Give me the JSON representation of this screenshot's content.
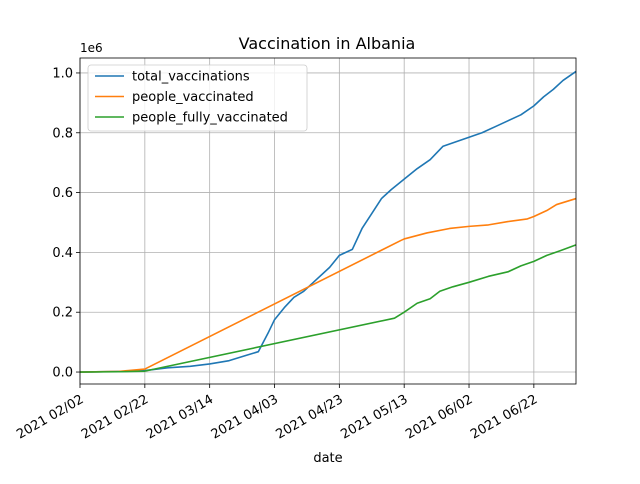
{
  "chart_data": {
    "type": "line",
    "title": "Vaccination in Albania",
    "xlabel": "date",
    "ylabel": "",
    "y_multiplier_label": "1e6",
    "x_ticks": [
      "2021 02/02",
      "2021 02/22",
      "2021 03/14",
      "2021 04/03",
      "2021 04/23",
      "2021 05/13",
      "2021 06/02",
      "2021 06/22"
    ],
    "y_ticks": [
      "0.0",
      "0.2",
      "0.4",
      "0.6",
      "0.8",
      "1.0"
    ],
    "xlim": [
      "2021-02-02",
      "2021-07-05"
    ],
    "ylim": [
      -0.04,
      1.05
    ],
    "y_unit_scale": 1000000,
    "grid": true,
    "legend_position": "top-left",
    "series": [
      {
        "name": "total_vaccinations",
        "color": "#1f77b4",
        "points": [
          [
            "2021-02-02",
            0
          ],
          [
            "2021-02-14",
            0.002
          ],
          [
            "2021-02-22",
            0.005
          ],
          [
            "2021-03-01",
            0.014
          ],
          [
            "2021-03-08",
            0.019
          ],
          [
            "2021-03-14",
            0.027
          ],
          [
            "2021-03-20",
            0.038
          ],
          [
            "2021-03-25",
            0.055
          ],
          [
            "2021-03-29",
            0.068
          ],
          [
            "2021-04-01",
            0.13
          ],
          [
            "2021-04-03",
            0.175
          ],
          [
            "2021-04-06",
            0.215
          ],
          [
            "2021-04-09",
            0.25
          ],
          [
            "2021-04-12",
            0.27
          ],
          [
            "2021-04-16",
            0.31
          ],
          [
            "2021-04-20",
            0.35
          ],
          [
            "2021-04-23",
            0.39
          ],
          [
            "2021-04-27",
            0.41
          ],
          [
            "2021-04-30",
            0.48
          ],
          [
            "2021-05-03",
            0.53
          ],
          [
            "2021-05-06",
            0.58
          ],
          [
            "2021-05-09",
            0.61
          ],
          [
            "2021-05-13",
            0.645
          ],
          [
            "2021-05-17",
            0.68
          ],
          [
            "2021-05-21",
            0.71
          ],
          [
            "2021-05-25",
            0.755
          ],
          [
            "2021-05-29",
            0.77
          ],
          [
            "2021-06-02",
            0.785
          ],
          [
            "2021-06-06",
            0.8
          ],
          [
            "2021-06-10",
            0.82
          ],
          [
            "2021-06-14",
            0.84
          ],
          [
            "2021-06-18",
            0.86
          ],
          [
            "2021-06-22",
            0.89
          ],
          [
            "2021-06-25",
            0.92
          ],
          [
            "2021-06-28",
            0.945
          ],
          [
            "2021-07-01",
            0.975
          ],
          [
            "2021-07-05",
            1.005
          ]
        ]
      },
      {
        "name": "people_vaccinated",
        "color": "#ff7f0e",
        "points": [
          [
            "2021-02-02",
            0
          ],
          [
            "2021-02-14",
            0.002
          ],
          [
            "2021-02-22",
            0.01
          ],
          [
            "2021-05-12",
            0.44
          ],
          [
            "2021-05-13",
            0.445
          ],
          [
            "2021-05-20",
            0.465
          ],
          [
            "2021-05-27",
            0.48
          ],
          [
            "2021-06-02",
            0.487
          ],
          [
            "2021-06-08",
            0.492
          ],
          [
            "2021-06-14",
            0.503
          ],
          [
            "2021-06-20",
            0.512
          ],
          [
            "2021-06-22",
            0.52
          ],
          [
            "2021-06-26",
            0.54
          ],
          [
            "2021-06-29",
            0.56
          ],
          [
            "2021-07-02",
            0.57
          ],
          [
            "2021-07-05",
            0.58
          ]
        ]
      },
      {
        "name": "people_fully_vaccinated",
        "color": "#2ca02c",
        "points": [
          [
            "2021-02-02",
            0
          ],
          [
            "2021-02-14",
            0.001
          ],
          [
            "2021-02-22",
            0.003
          ],
          [
            "2021-05-10",
            0.18
          ],
          [
            "2021-05-13",
            0.2
          ],
          [
            "2021-05-17",
            0.23
          ],
          [
            "2021-05-21",
            0.245
          ],
          [
            "2021-05-24",
            0.27
          ],
          [
            "2021-05-28",
            0.285
          ],
          [
            "2021-06-02",
            0.3
          ],
          [
            "2021-06-08",
            0.32
          ],
          [
            "2021-06-14",
            0.335
          ],
          [
            "2021-06-18",
            0.355
          ],
          [
            "2021-06-22",
            0.37
          ],
          [
            "2021-06-26",
            0.39
          ],
          [
            "2021-06-30",
            0.405
          ],
          [
            "2021-07-05",
            0.425
          ]
        ]
      }
    ]
  }
}
